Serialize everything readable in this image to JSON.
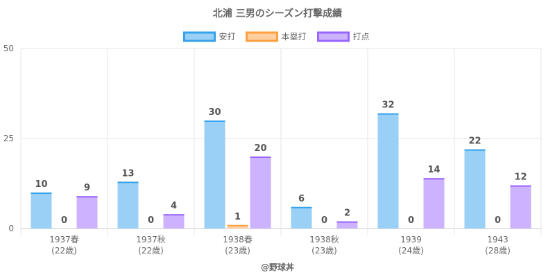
{
  "chart_data": {
    "type": "bar",
    "title": "北浦 三男のシーズン打撃成績",
    "categories": [
      [
        "1937春",
        "(22歳)"
      ],
      [
        "1937秋",
        "(22歳)"
      ],
      [
        "1938春",
        "(23歳)"
      ],
      [
        "1938秋",
        "(23歳)"
      ],
      [
        "1939",
        "(24歳)"
      ],
      [
        "1943",
        "(28歳)"
      ]
    ],
    "series": [
      {
        "name": "安打",
        "values": [
          10,
          13,
          30,
          6,
          32,
          22
        ],
        "fill": "#9ad0f5",
        "stroke": "#36a2eb"
      },
      {
        "name": "本塁打",
        "values": [
          0,
          0,
          1,
          0,
          0,
          0
        ],
        "fill": "#ffcf9f",
        "stroke": "#ff9f40"
      },
      {
        "name": "打点",
        "values": [
          9,
          4,
          20,
          2,
          14,
          12
        ],
        "fill": "#ccb2ff",
        "stroke": "#9966ff"
      }
    ],
    "ylim": [
      0,
      50
    ],
    "yticks": [
      0,
      25,
      50
    ],
    "grid": true,
    "legend": "top-center",
    "show_data_labels": true
  },
  "footer": {
    "credit": "@野球丼"
  }
}
